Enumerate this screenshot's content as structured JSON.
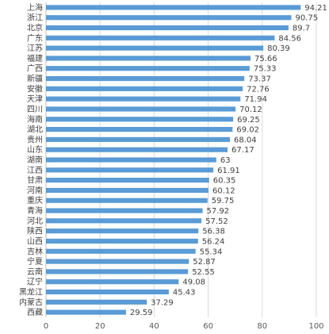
{
  "chart_data": {
    "type": "bar",
    "orientation": "horizontal",
    "categories": [
      "上海",
      "浙江",
      "北京",
      "广东",
      "江苏",
      "福建",
      "广西",
      "新疆",
      "安徽",
      "天津",
      "四川",
      "海南",
      "湖北",
      "贵州",
      "山东",
      "湖南",
      "江西",
      "甘肃",
      "河南",
      "重庆",
      "青海",
      "河北",
      "陕西",
      "山西",
      "吉林",
      "宁夏",
      "云南",
      "辽宁",
      "黑龙江",
      "内蒙古",
      "西藏"
    ],
    "values": [
      94.21,
      90.75,
      89.7,
      84.56,
      80.39,
      75.66,
      75.33,
      73.37,
      72.76,
      71.94,
      70.12,
      69.25,
      69.02,
      68.04,
      67.17,
      63,
      61.91,
      60.35,
      60.12,
      59.75,
      57.92,
      57.52,
      56.38,
      56.24,
      55.34,
      52.87,
      52.55,
      49.08,
      45.43,
      37.29,
      29.59
    ],
    "value_labels": [
      "94.21",
      "90.75",
      "89.7",
      "84.56",
      "80.39",
      "75.66",
      "75.33",
      "73.37",
      "72.76",
      "71.94",
      "70.12",
      "69.25",
      "69.02",
      "68.04",
      "67.17",
      "63",
      "61.91",
      "60.35",
      "60.12",
      "59.75",
      "57.92",
      "57.52",
      "56.38",
      "56.24",
      "55.34",
      "52.87",
      "52.55",
      "49.08",
      "45.43",
      "37.29",
      "29.59"
    ],
    "xlim": [
      0,
      100
    ],
    "x_ticks": [
      "0",
      "20",
      "40",
      "60",
      "80",
      "100"
    ],
    "title": "",
    "xlabel": "",
    "ylabel": "",
    "grid": true,
    "legend": "none",
    "bar_color": "#5b9bd5"
  }
}
